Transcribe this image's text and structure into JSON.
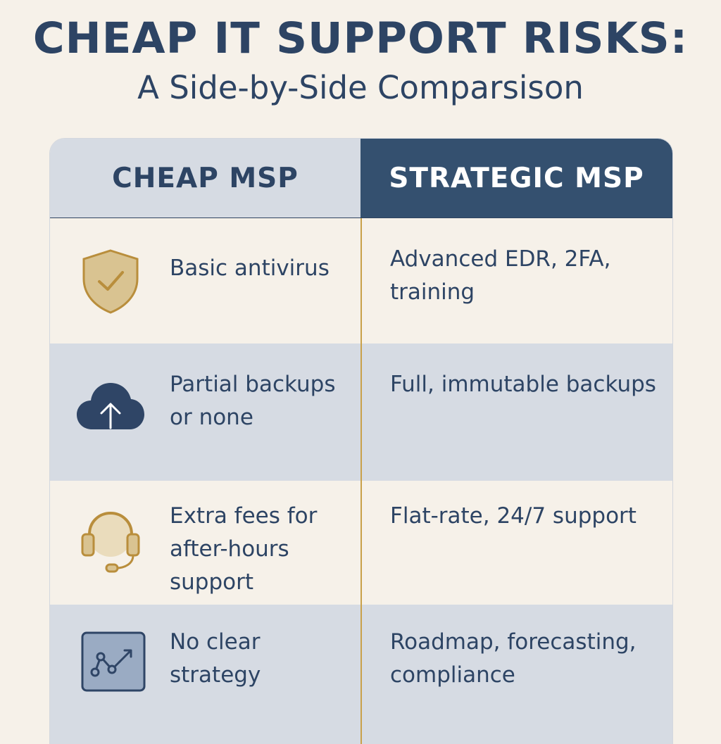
{
  "title": "CHEAP IT SUPPORT RISKS:",
  "subtitle": "A Side-by-Side Comparsison",
  "columns": {
    "left": "CHEAP MSP",
    "right": "STRATEGIC MSP"
  },
  "rows": [
    {
      "icon": "shield-check-icon",
      "cheap": "Basic antivirus",
      "strategic": "Advanced EDR, 2FA, training"
    },
    {
      "icon": "cloud-upload-icon",
      "cheap": "Partial backups or none",
      "strategic": "Full, immutable backups"
    },
    {
      "icon": "headset-icon",
      "cheap": "Extra fees for after-hours support",
      "strategic": "Flat-rate, 24/7 support"
    },
    {
      "icon": "strategy-graph-icon",
      "cheap": "No clear strategy",
      "strategic": "Roadmap, forecasting, compliance"
    }
  ],
  "colors": {
    "navy": "#2d4464",
    "header_dark": "#34506f",
    "row_alt": "#d6dbe3",
    "background": "#f6f1e9",
    "gold": "#c9a14a"
  }
}
